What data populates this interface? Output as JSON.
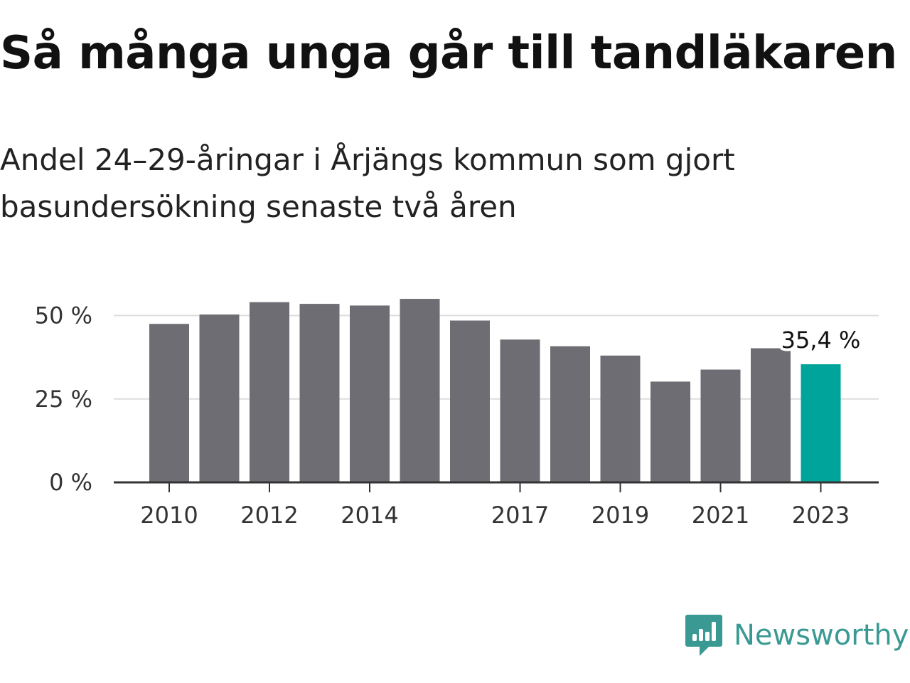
{
  "header": {
    "title": "Så många unga går till tandläkaren",
    "subtitle": "Andel 24–29-åringar i Årjängs kommun som gjort basundersökning senaste två åren"
  },
  "brand": {
    "name": "Newsworthy",
    "icon": "newsworthy-logo-icon",
    "color": "#3a9a93"
  },
  "chart_data": {
    "type": "bar",
    "title": "Så många unga går till tandläkaren",
    "subtitle": "Andel 24–29-åringar i Årjängs kommun som gjort basundersökning senaste två åren",
    "xlabel": "",
    "ylabel": "",
    "categories": [
      "2010",
      "2011",
      "2012",
      "2013",
      "2014",
      "2015",
      "2016",
      "2017",
      "2018",
      "2019",
      "2020",
      "2021",
      "2022",
      "2023"
    ],
    "x_tick_labels": [
      "2010",
      "2012",
      "2014",
      "2017",
      "2019",
      "2021",
      "2023"
    ],
    "values": [
      47.5,
      50.3,
      54.0,
      53.5,
      53.0,
      55.0,
      48.5,
      42.8,
      40.8,
      38.0,
      30.2,
      33.8,
      40.2,
      35.4
    ],
    "ylim": [
      0,
      60
    ],
    "y_ticks": [
      0,
      25,
      50
    ],
    "y_tick_labels": [
      "0 %",
      "25 %",
      "50 %"
    ],
    "grid": true,
    "highlight": {
      "category": "2023",
      "label": "35,4 %"
    },
    "colors": {
      "bar": "#6e6d73",
      "highlight": "#00a49a",
      "grid": "#dddddd",
      "axis": "#333333"
    }
  }
}
